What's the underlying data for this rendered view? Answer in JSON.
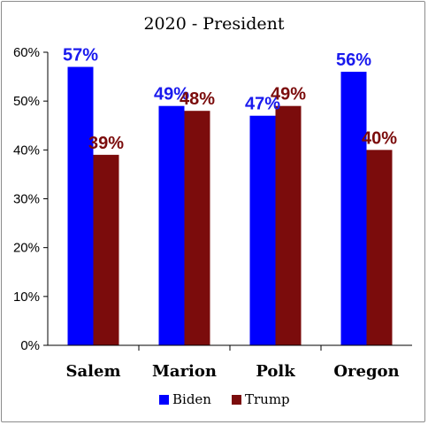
{
  "chart_data": {
    "type": "bar",
    "title": "2020 - President",
    "categories": [
      "Salem",
      "Marion",
      "Polk",
      "Oregon"
    ],
    "series": [
      {
        "name": "Biden",
        "values": [
          57,
          49,
          47,
          56
        ],
        "labels": [
          "57%",
          "49%",
          "47%",
          "56%"
        ],
        "color": "#0000ff",
        "label_color": "#1a1aee"
      },
      {
        "name": "Trump",
        "values": [
          39,
          48,
          49,
          40
        ],
        "labels": [
          "39%",
          "48%",
          "49%",
          "40%"
        ],
        "color": "#7b0c0c",
        "label_color": "#7b0c0c"
      }
    ],
    "ylim": [
      0,
      60
    ],
    "yticks": [
      0,
      10,
      20,
      30,
      40,
      50,
      60
    ],
    "ytick_labels": [
      "0%",
      "10%",
      "20%",
      "30%",
      "40%",
      "50%",
      "60%"
    ],
    "xlabel": "",
    "ylabel": "",
    "grid": false,
    "legend_position": "bottom"
  }
}
